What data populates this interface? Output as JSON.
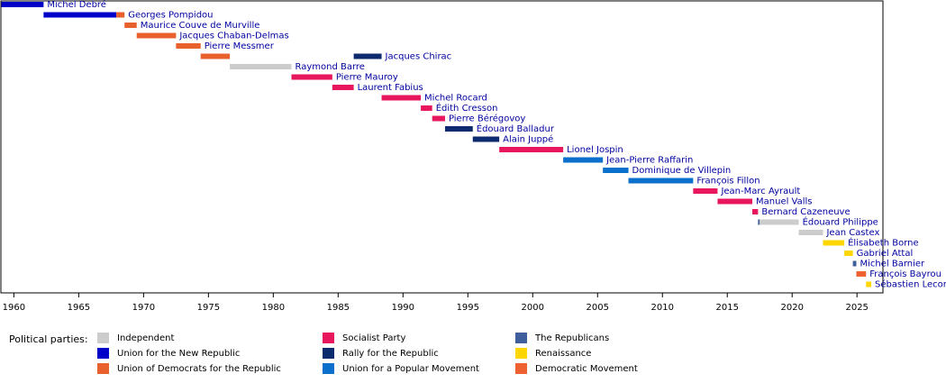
{
  "chart_data": {
    "type": "timeline",
    "xlim": [
      1959,
      2027
    ],
    "xticks": [
      1960,
      1965,
      1970,
      1975,
      1980,
      1985,
      1990,
      1995,
      2000,
      2005,
      2010,
      2015,
      2020,
      2025
    ],
    "legend_title": "Political parties:",
    "parties": [
      {
        "name": "Independent",
        "color": "#cccccc"
      },
      {
        "name": "Union for the New Republic",
        "color": "#0000c8"
      },
      {
        "name": "Union of Democrats for the Republic",
        "color": "#e8602c"
      },
      {
        "name": "Socialist Party",
        "color": "#e8175d"
      },
      {
        "name": "Rally for the Republic",
        "color": "#0d2a6e"
      },
      {
        "name": "Union for a Popular Movement",
        "color": "#0b6fcc"
      },
      {
        "name": "The Republicans",
        "color": "#3e5f9c"
      },
      {
        "name": "Renaissance",
        "color": "#ffd600"
      },
      {
        "name": "Democratic Movement",
        "color": "#ee6131"
      }
    ],
    "rows": [
      {
        "label": "Michel Debré",
        "segments": [
          {
            "start": 1959.04,
            "end": 1962.29,
            "party": 1
          }
        ]
      },
      {
        "label": "Georges Pompidou",
        "segments": [
          {
            "start": 1962.29,
            "end": 1967.9,
            "party": 1
          },
          {
            "start": 1967.9,
            "end": 1968.53,
            "party": 2
          }
        ]
      },
      {
        "label": "Maurice Couve de Murville",
        "segments": [
          {
            "start": 1968.53,
            "end": 1969.47,
            "party": 2
          }
        ]
      },
      {
        "label": "Jacques Chaban-Delmas",
        "segments": [
          {
            "start": 1969.47,
            "end": 1972.5,
            "party": 2
          }
        ]
      },
      {
        "label": "Pierre Messmer",
        "segments": [
          {
            "start": 1972.5,
            "end": 1974.4,
            "party": 2
          }
        ]
      },
      {
        "label": "Jacques Chirac",
        "segments": [
          {
            "start": 1974.4,
            "end": 1976.65,
            "party": 2
          },
          {
            "start": 1986.2,
            "end": 1988.35,
            "party": 4
          }
        ]
      },
      {
        "label": "Raymond Barre",
        "segments": [
          {
            "start": 1976.65,
            "end": 1981.4,
            "party": 0
          }
        ]
      },
      {
        "label": "Pierre Mauroy",
        "segments": [
          {
            "start": 1981.4,
            "end": 1984.55,
            "party": 3
          }
        ]
      },
      {
        "label": "Laurent Fabius",
        "segments": [
          {
            "start": 1984.55,
            "end": 1986.2,
            "party": 3
          }
        ]
      },
      {
        "label": "Michel Rocard",
        "segments": [
          {
            "start": 1988.35,
            "end": 1991.37,
            "party": 3
          }
        ]
      },
      {
        "label": "Édith Cresson",
        "segments": [
          {
            "start": 1991.37,
            "end": 1992.25,
            "party": 3
          }
        ]
      },
      {
        "label": "Pierre Bérégovoy",
        "segments": [
          {
            "start": 1992.25,
            "end": 1993.24,
            "party": 3
          }
        ]
      },
      {
        "label": "Édouard Balladur",
        "segments": [
          {
            "start": 1993.24,
            "end": 1995.38,
            "party": 4
          }
        ]
      },
      {
        "label": "Alain Juppé",
        "segments": [
          {
            "start": 1995.38,
            "end": 1997.42,
            "party": 4
          }
        ]
      },
      {
        "label": "Lionel Jospin",
        "segments": [
          {
            "start": 1997.42,
            "end": 2002.35,
            "party": 3
          }
        ]
      },
      {
        "label": "Jean-Pierre Raffarin",
        "segments": [
          {
            "start": 2002.35,
            "end": 2005.41,
            "party": 5
          }
        ]
      },
      {
        "label": "Dominique de Villepin",
        "segments": [
          {
            "start": 2005.41,
            "end": 2007.38,
            "party": 5
          }
        ]
      },
      {
        "label": "François Fillon",
        "segments": [
          {
            "start": 2007.38,
            "end": 2012.37,
            "party": 5
          }
        ]
      },
      {
        "label": "Jean-Marc Ayrault",
        "segments": [
          {
            "start": 2012.37,
            "end": 2014.25,
            "party": 3
          }
        ]
      },
      {
        "label": "Manuel Valls",
        "segments": [
          {
            "start": 2014.25,
            "end": 2016.93,
            "party": 3
          }
        ]
      },
      {
        "label": "Bernard Cazeneuve",
        "segments": [
          {
            "start": 2016.93,
            "end": 2017.37,
            "party": 3
          }
        ]
      },
      {
        "label": "Édouard Philippe",
        "segments": [
          {
            "start": 2017.37,
            "end": 2017.5,
            "party": 6
          },
          {
            "start": 2017.5,
            "end": 2020.51,
            "party": 0
          }
        ]
      },
      {
        "label": "Jean Castex",
        "segments": [
          {
            "start": 2020.51,
            "end": 2022.38,
            "party": 0
          }
        ]
      },
      {
        "label": "Élisabeth Borne",
        "segments": [
          {
            "start": 2022.38,
            "end": 2024.02,
            "party": 7
          }
        ]
      },
      {
        "label": "Gabriel Attal",
        "segments": [
          {
            "start": 2024.02,
            "end": 2024.68,
            "party": 7
          }
        ]
      },
      {
        "label": "Michel Barnier",
        "segments": [
          {
            "start": 2024.68,
            "end": 2024.95,
            "party": 6
          }
        ]
      },
      {
        "label": "François Bayrou",
        "segments": [
          {
            "start": 2024.95,
            "end": 2025.7,
            "party": 8
          }
        ]
      },
      {
        "label": "Sébastien Lecornu",
        "segments": [
          {
            "start": 2025.7,
            "end": 2026.1,
            "party": 7
          }
        ]
      }
    ]
  }
}
